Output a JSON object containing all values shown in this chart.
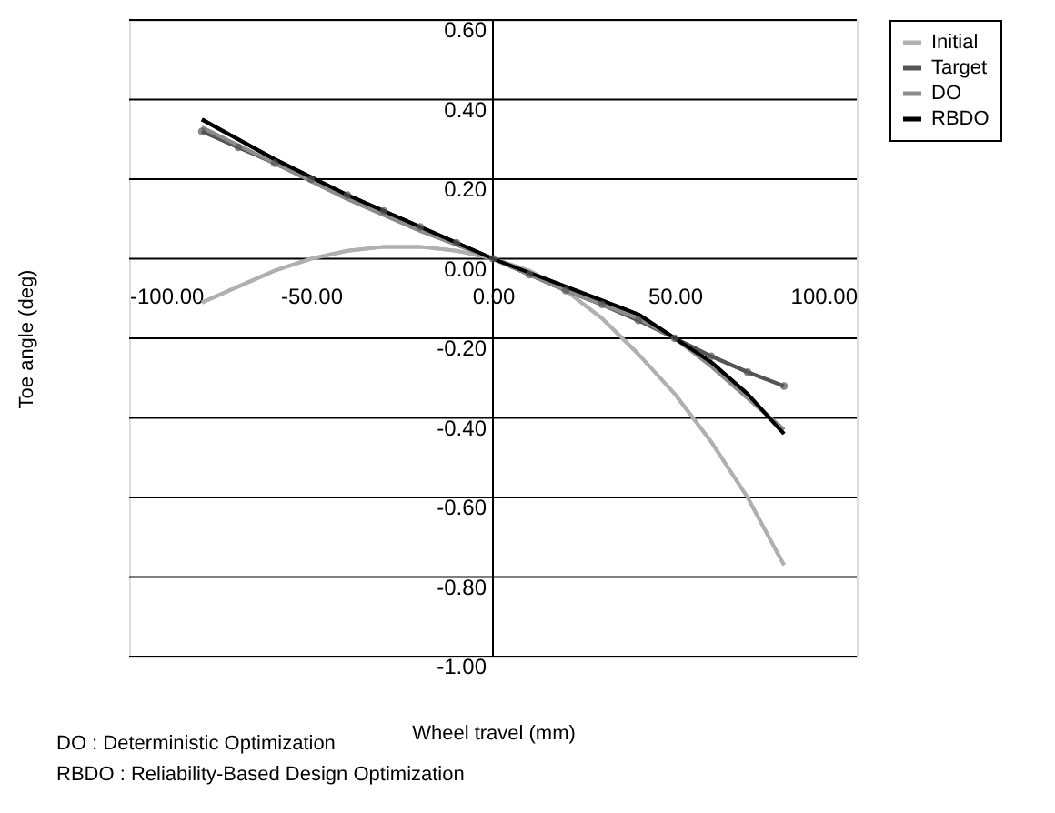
{
  "chart_data": {
    "type": "line",
    "xlabel": "Wheel travel (mm)",
    "ylabel": "Toe angle (deg)",
    "xlim": [
      -100,
      100
    ],
    "xticks": [
      {
        "value": -100,
        "label": "-100.00"
      },
      {
        "value": -50,
        "label": "-50.00"
      },
      {
        "value": 0,
        "label": "0.00"
      },
      {
        "value": 50,
        "label": "50.00"
      },
      {
        "value": 100,
        "label": "100.00"
      }
    ],
    "ylim": [
      -1.0,
      0.6
    ],
    "yticks": [
      {
        "value": -1.0,
        "label": "-1.00"
      },
      {
        "value": -0.8,
        "label": "-0.80"
      },
      {
        "value": -0.6,
        "label": "-0.60"
      },
      {
        "value": -0.4,
        "label": "-0.40"
      },
      {
        "value": -0.2,
        "label": "-0.20"
      },
      {
        "value": 0,
        "label": "0.00"
      },
      {
        "value": 0.2,
        "label": "0.20"
      },
      {
        "value": 0.4,
        "label": "0.40"
      },
      {
        "value": 0.6,
        "label": "0.60"
      }
    ],
    "grid": "y",
    "legend": "right",
    "line_style": "solid",
    "x": [
      -80,
      -70,
      -60,
      -50,
      -40,
      -30,
      -20,
      -10,
      0,
      10,
      20,
      30,
      40,
      50,
      60,
      70,
      80
    ],
    "series": [
      {
        "name": "Initial",
        "color": "#b0b0b0",
        "marker": "none",
        "values": [
          -0.11,
          -0.07,
          -0.03,
          0.0,
          0.02,
          0.03,
          0.03,
          0.02,
          0.0,
          -0.03,
          -0.08,
          -0.15,
          -0.24,
          -0.34,
          -0.46,
          -0.6,
          -0.77
        ]
      },
      {
        "name": "Target",
        "color": "#555555",
        "marker": "circle",
        "values": [
          0.32,
          0.28,
          0.24,
          0.2,
          0.16,
          0.12,
          0.08,
          0.04,
          0.0,
          -0.04,
          -0.08,
          -0.115,
          -0.155,
          -0.2,
          -0.245,
          -0.285,
          -0.32
        ]
      },
      {
        "name": "DO",
        "color": "#8c8c8c",
        "marker": "none",
        "values": [
          0.33,
          0.285,
          0.24,
          0.195,
          0.15,
          0.11,
          0.07,
          0.035,
          0.0,
          -0.04,
          -0.08,
          -0.115,
          -0.15,
          -0.2,
          -0.27,
          -0.35,
          -0.43
        ]
      },
      {
        "name": "RBDO",
        "color": "#000000",
        "marker": "none",
        "values": [
          0.35,
          0.3,
          0.25,
          0.205,
          0.16,
          0.12,
          0.08,
          0.04,
          0.0,
          -0.035,
          -0.07,
          -0.105,
          -0.14,
          -0.2,
          -0.26,
          -0.34,
          -0.44
        ]
      }
    ],
    "annotations": [
      "DO : Deterministic Optimization",
      "RBDO : Reliability-Based Design Optimization"
    ]
  }
}
